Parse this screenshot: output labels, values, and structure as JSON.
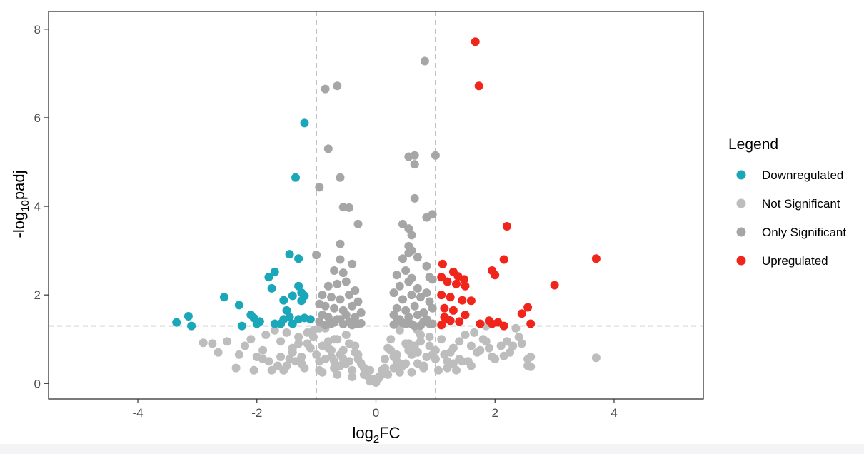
{
  "chart_data": {
    "type": "scatter",
    "title": "",
    "xlabel": "log₂FC",
    "xlabel_base": "log",
    "xlabel_sub": "2",
    "xlabel_tail": "FC",
    "ylabel": "-log₁₀padj",
    "ylabel_base": "-log",
    "ylabel_sub": "10",
    "ylabel_tail": "padj",
    "xlim": [
      -5.5,
      5.5
    ],
    "ylim": [
      -0.35,
      8.4
    ],
    "xticks": [
      -4,
      -2,
      0,
      2,
      4
    ],
    "yticks": [
      0,
      2,
      4,
      6,
      8
    ],
    "grid": false,
    "reference_lines": {
      "x": [
        -1,
        1
      ],
      "y": [
        1.3
      ]
    },
    "legend": {
      "title": "Legend",
      "placement": "right",
      "entries": [
        {
          "label": "Downregulated",
          "color": "#1ba7ba"
        },
        {
          "label": "Not Significant",
          "color": "#bdbdbd"
        },
        {
          "label": "Only Significant",
          "color": "#a6a6a6"
        },
        {
          "label": "Upregulated",
          "color": "#f0261c"
        }
      ]
    },
    "series": [
      {
        "name": "Not Significant",
        "color": "#bdbdbd",
        "x": [
          -2.9,
          -2.75,
          -2.65,
          -2.5,
          -2.35,
          -2.3,
          -2.2,
          -2.1,
          -2.0,
          -1.9,
          -1.85,
          -1.8,
          -1.7,
          -1.65,
          -1.6,
          -1.55,
          -1.5,
          -1.45,
          -1.4,
          -1.3,
          -1.25,
          -1.15,
          -1.05,
          -0.95,
          -0.9,
          -0.85,
          -0.75,
          -0.7,
          -0.65,
          -0.55,
          -0.45,
          -0.4,
          -0.35,
          -0.25,
          -0.2,
          -0.1,
          -0.05,
          -1.6,
          -1.4,
          -1.2,
          -1.0,
          -0.8,
          -0.6,
          -0.5,
          -0.3,
          -0.15,
          -1.75,
          -1.35,
          -1.1,
          -0.9,
          -0.7,
          -0.45,
          -0.2,
          -2.05,
          -1.9,
          -1.5,
          -1.25,
          -0.95,
          -0.75,
          -0.55,
          -0.35,
          -1.05,
          -0.85,
          -0.65,
          -0.4,
          -1.3,
          -0.6,
          -1.15,
          -0.8,
          -0.5,
          -0.95,
          -0.7,
          -0.3,
          -0.1,
          0.05,
          0.1,
          0.15,
          0.2,
          0.25,
          0.3,
          0.35,
          0.4,
          0.5,
          0.55,
          0.6,
          0.7,
          0.75,
          0.8,
          0.9,
          1.0,
          1.1,
          1.2,
          1.3,
          1.4,
          1.5,
          1.6,
          1.75,
          1.85,
          1.95,
          2.1,
          2.25,
          2.35,
          2.45,
          2.55,
          2.6,
          3.7,
          0.2,
          0.4,
          0.6,
          0.8,
          1.0,
          1.2,
          1.4,
          1.7,
          2.0,
          2.3,
          2.55,
          0.3,
          0.5,
          0.7,
          0.9,
          1.15,
          1.35,
          1.55,
          1.9,
          2.2,
          0.25,
          0.45,
          0.65,
          0.85,
          1.05,
          1.25,
          1.45,
          1.65,
          0.1,
          0.35,
          0.55,
          0.75,
          0.95,
          1.3,
          1.6,
          0.15,
          0.4,
          0.7,
          1.0,
          1.8,
          -0.05,
          0.0,
          0.05,
          -0.15,
          0.12,
          2.4,
          2.6,
          2.15,
          1.85
        ],
        "y": [
          0.92,
          0.9,
          0.7,
          0.95,
          0.35,
          0.65,
          0.85,
          1.0,
          0.6,
          0.75,
          1.1,
          0.5,
          1.2,
          0.4,
          0.95,
          0.3,
          1.15,
          0.55,
          0.8,
          1.05,
          0.45,
          0.9,
          1.2,
          0.5,
          0.85,
          1.25,
          0.6,
          0.35,
          1.0,
          0.75,
          0.5,
          0.3,
          0.85,
          0.45,
          0.2,
          0.3,
          0.1,
          0.6,
          0.7,
          0.35,
          0.65,
          0.95,
          0.4,
          1.1,
          0.55,
          0.25,
          0.3,
          0.5,
          0.8,
          0.25,
          0.5,
          0.9,
          0.35,
          0.3,
          0.55,
          0.4,
          0.6,
          0.3,
          0.75,
          0.55,
          0.7,
          1.05,
          0.55,
          0.2,
          0.15,
          0.9,
          0.65,
          1.15,
          0.8,
          0.45,
          1.25,
          1.0,
          0.65,
          0.05,
          0.15,
          0.3,
          0.55,
          0.8,
          1.0,
          0.35,
          0.65,
          1.2,
          0.45,
          0.9,
          0.25,
          0.7,
          1.1,
          0.4,
          0.85,
          0.55,
          1.0,
          0.35,
          0.8,
          0.55,
          1.1,
          0.4,
          0.75,
          0.95,
          0.6,
          0.85,
          0.7,
          1.25,
          0.9,
          0.55,
          0.6,
          0.58,
          0.2,
          0.45,
          0.65,
          0.35,
          0.75,
          0.5,
          0.95,
          0.7,
          0.55,
          0.85,
          0.4,
          0.6,
          0.9,
          0.45,
          1.05,
          0.65,
          0.3,
          0.5,
          0.8,
          0.95,
          0.75,
          0.4,
          0.85,
          0.6,
          0.3,
          0.7,
          0.5,
          1.15,
          0.2,
          0.5,
          0.75,
          0.95,
          0.65,
          0.45,
          0.85,
          0.35,
          0.25,
          1.2,
          0.55,
          1.0,
          0.08,
          0.02,
          0.12,
          0.18,
          0.22,
          1.05,
          0.38,
          0.62,
          1.3
        ]
      },
      {
        "name": "Only Significant",
        "color": "#a6a6a6",
        "x": [
          0.82,
          -0.65,
          -0.85,
          -0.8,
          0.55,
          0.65,
          1.0,
          0.65,
          -0.6,
          -0.95,
          -0.55,
          0.65,
          0.85,
          0.95,
          -0.45,
          -0.3,
          0.45,
          0.55,
          -0.6,
          0.6,
          0.6,
          0.55,
          -0.6,
          0.45,
          0.7,
          0.55,
          -1.0,
          0.5,
          0.85,
          0.9,
          -0.7,
          -0.55,
          -0.4,
          0.35,
          0.6,
          0.95,
          -0.8,
          -0.65,
          -0.5,
          -0.35,
          0.4,
          0.55,
          0.7,
          0.85,
          -0.9,
          -0.75,
          -0.6,
          -0.45,
          -0.3,
          0.3,
          0.45,
          0.6,
          0.75,
          0.9,
          -0.95,
          -0.85,
          -0.7,
          -0.55,
          -0.4,
          -0.25,
          0.35,
          0.5,
          0.65,
          0.8,
          0.95,
          -0.9,
          -0.8,
          -0.65,
          -0.5,
          -0.35,
          0.3,
          0.4,
          0.55,
          0.7,
          0.85,
          -0.95,
          -0.75,
          -0.6,
          -0.45,
          -0.3,
          0.35,
          0.5,
          0.65,
          0.8,
          0.95,
          -0.85,
          -0.7,
          -0.55,
          -0.4,
          -0.25,
          0.3,
          0.45,
          0.6,
          0.75,
          0.9
        ],
        "y": [
          7.28,
          6.72,
          6.65,
          5.3,
          5.12,
          5.15,
          5.15,
          4.95,
          4.65,
          4.43,
          3.98,
          4.18,
          3.75,
          3.82,
          3.97,
          3.6,
          3.6,
          3.5,
          3.15,
          3.35,
          3.0,
          2.95,
          2.8,
          2.82,
          2.85,
          3.1,
          2.9,
          2.55,
          2.65,
          2.4,
          2.55,
          2.5,
          2.7,
          2.45,
          2.38,
          2.35,
          2.2,
          2.25,
          2.3,
          2.1,
          2.2,
          2.3,
          2.15,
          2.05,
          2.0,
          1.95,
          1.9,
          2.0,
          1.85,
          2.05,
          1.9,
          2.0,
          1.95,
          1.85,
          1.8,
          1.75,
          1.7,
          1.65,
          1.75,
          1.6,
          1.7,
          1.65,
          1.75,
          1.6,
          1.7,
          1.55,
          1.5,
          1.45,
          1.55,
          1.5,
          1.55,
          1.45,
          1.5,
          1.55,
          1.45,
          1.4,
          1.35,
          1.45,
          1.4,
          1.35,
          1.4,
          1.35,
          1.3,
          1.4,
          1.35,
          1.32,
          1.38,
          1.34,
          1.32,
          1.36,
          1.33,
          1.37,
          1.34,
          1.31,
          1.35
        ]
      },
      {
        "name": "Downregulated",
        "color": "#1ba7ba",
        "x": [
          -1.2,
          -1.35,
          -1.45,
          -1.3,
          -1.7,
          -1.8,
          -1.75,
          -1.3,
          -1.25,
          -1.2,
          -1.4,
          -1.55,
          -1.5,
          -1.25,
          -2.55,
          -2.3,
          -2.1,
          -2.05,
          -1.95,
          -2.0,
          -1.55,
          -1.45,
          -1.4,
          -1.3,
          -1.2,
          -1.1,
          -3.35,
          -3.15,
          -3.1,
          -2.25,
          -1.7,
          -1.6
        ],
        "y": [
          5.88,
          4.65,
          2.92,
          2.82,
          2.52,
          2.4,
          2.15,
          2.2,
          2.05,
          1.98,
          1.98,
          1.88,
          1.65,
          1.87,
          1.95,
          1.77,
          1.55,
          1.48,
          1.4,
          1.35,
          1.45,
          1.5,
          1.35,
          1.45,
          1.48,
          1.45,
          1.38,
          1.52,
          1.3,
          1.3,
          1.35,
          1.35
        ]
      },
      {
        "name": "Upregulated",
        "color": "#f0261c",
        "x": [
          1.67,
          1.73,
          2.2,
          3.7,
          2.15,
          1.12,
          1.3,
          1.38,
          1.48,
          1.95,
          2.0,
          1.1,
          1.2,
          1.35,
          1.5,
          3.0,
          1.1,
          1.25,
          1.45,
          1.6,
          1.15,
          1.3,
          1.5,
          2.55,
          2.45,
          2.6,
          1.9,
          2.05,
          2.15,
          1.15,
          1.25,
          1.75,
          1.4,
          1.95,
          1.1,
          1.2
        ],
        "y": [
          7.72,
          6.72,
          3.55,
          2.82,
          2.8,
          2.7,
          2.52,
          2.42,
          2.35,
          2.55,
          2.45,
          2.4,
          2.3,
          2.25,
          2.2,
          2.22,
          2.0,
          1.95,
          1.88,
          1.87,
          1.7,
          1.65,
          1.55,
          1.72,
          1.58,
          1.35,
          1.42,
          1.38,
          1.3,
          1.5,
          1.42,
          1.35,
          1.4,
          1.35,
          1.32,
          1.45
        ]
      }
    ]
  }
}
